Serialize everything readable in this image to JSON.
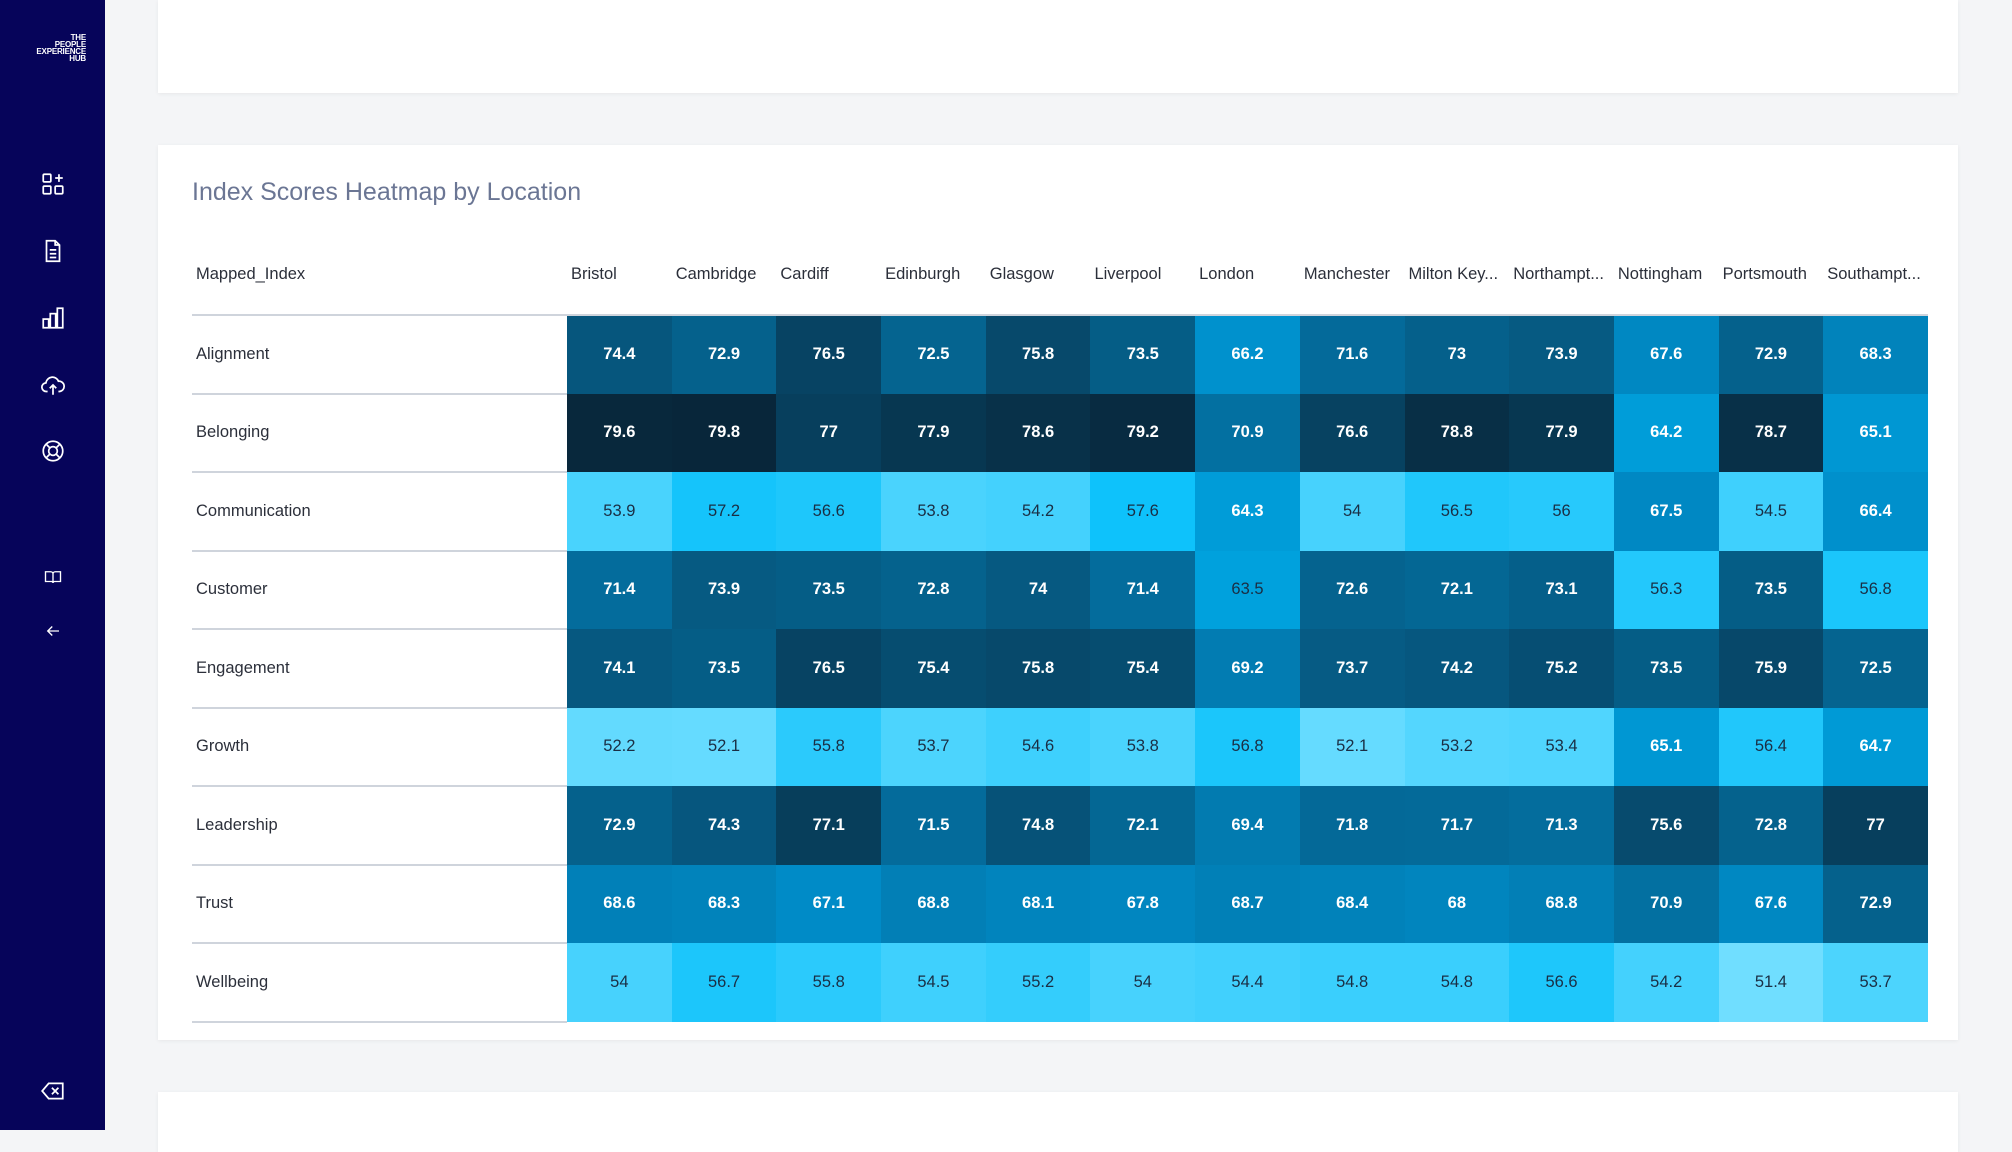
{
  "app": {
    "logo_lines": [
      "THE",
      "PEOPLE",
      "EXPERIENCE",
      "HUB"
    ]
  },
  "sidebar": {
    "items": [
      {
        "icon": "dashboard-add-icon"
      },
      {
        "icon": "document-icon"
      },
      {
        "icon": "bar-chart-icon"
      },
      {
        "icon": "cloud-upload-icon"
      },
      {
        "icon": "support-lifebuoy-icon"
      },
      {
        "icon": "book-icon"
      },
      {
        "icon": "arrow-left-icon"
      },
      {
        "icon": "backspace-icon"
      }
    ],
    "background": "#06045a"
  },
  "heatmap": {
    "title": "Index Scores Heatmap by Location",
    "row_header": "Mapped_Index",
    "chart_data": {
      "type": "heatmap",
      "title": "Index Scores Heatmap by Location",
      "x": [
        "Bristol",
        "Cambridge",
        "Cardiff",
        "Edinburgh",
        "Glasgow",
        "Liverpool",
        "London",
        "Manchester",
        "Milton Key...",
        "Northampt...",
        "Nottingham",
        "Portsmouth",
        "Southampt..."
      ],
      "y": [
        "Alignment",
        "Belonging",
        "Communication",
        "Customer",
        "Engagement",
        "Growth",
        "Leadership",
        "Trust",
        "Wellbeing"
      ],
      "values": [
        [
          "74.4",
          "72.9",
          "76.5",
          "72.5",
          "75.8",
          "73.5",
          "66.2",
          "71.6",
          "73",
          "73.9",
          "67.6",
          "72.9",
          "68.3"
        ],
        [
          "79.6",
          "79.8",
          "77",
          "77.9",
          "78.6",
          "79.2",
          "70.9",
          "76.6",
          "78.8",
          "77.9",
          "64.2",
          "78.7",
          "65.1"
        ],
        [
          "53.9",
          "57.2",
          "56.6",
          "53.8",
          "54.2",
          "57.6",
          "64.3",
          "54",
          "56.5",
          "56",
          "67.5",
          "54.5",
          "66.4"
        ],
        [
          "71.4",
          "73.9",
          "73.5",
          "72.8",
          "74",
          "71.4",
          "63.5",
          "72.6",
          "72.1",
          "73.1",
          "56.3",
          "73.5",
          "56.8"
        ],
        [
          "74.1",
          "73.5",
          "76.5",
          "75.4",
          "75.8",
          "75.4",
          "69.2",
          "73.7",
          "74.2",
          "75.2",
          "73.5",
          "75.9",
          "72.5"
        ],
        [
          "52.2",
          "52.1",
          "55.8",
          "53.7",
          "54.6",
          "53.8",
          "56.8",
          "52.1",
          "53.2",
          "53.4",
          "65.1",
          "56.4",
          "64.7"
        ],
        [
          "72.9",
          "74.3",
          "77.1",
          "71.5",
          "74.8",
          "72.1",
          "69.4",
          "71.8",
          "71.7",
          "71.3",
          "75.6",
          "72.8",
          "77"
        ],
        [
          "68.6",
          "68.3",
          "67.1",
          "68.8",
          "68.1",
          "67.8",
          "68.7",
          "68.4",
          "68",
          "68.8",
          "70.9",
          "67.6",
          "72.9"
        ],
        [
          "54",
          "56.7",
          "55.8",
          "54.5",
          "55.2",
          "54",
          "54.4",
          "54.8",
          "54.8",
          "56.6",
          "54.2",
          "51.4",
          "53.7"
        ]
      ]
    }
  }
}
